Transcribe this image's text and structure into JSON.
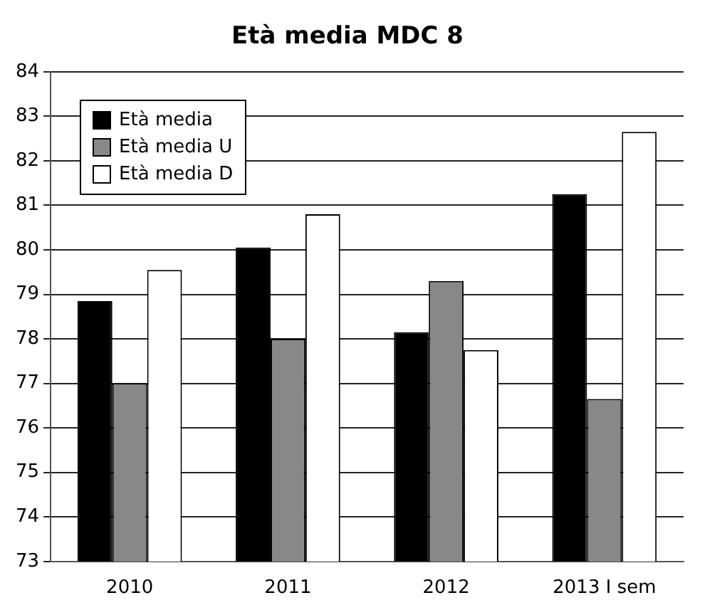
{
  "chart_data": {
    "type": "bar",
    "title": "Età media MDC 8",
    "categories": [
      "2010",
      "2011",
      "2012",
      "2013 I sem"
    ],
    "series": [
      {
        "name": "Età media",
        "color": "#000000",
        "values": [
          78.85,
          80.05,
          78.15,
          81.25
        ]
      },
      {
        "name": "Età media U",
        "color": "#888888",
        "values": [
          77.0,
          78.0,
          79.3,
          76.65
        ]
      },
      {
        "name": "Età media D",
        "color": "#ffffff",
        "values": [
          79.55,
          80.8,
          77.75,
          82.65
        ]
      }
    ],
    "ylim": [
      73,
      84
    ],
    "yticks": [
      73,
      74,
      75,
      76,
      77,
      78,
      79,
      80,
      81,
      82,
      83,
      84
    ],
    "grid": "y",
    "legend": "top left"
  }
}
